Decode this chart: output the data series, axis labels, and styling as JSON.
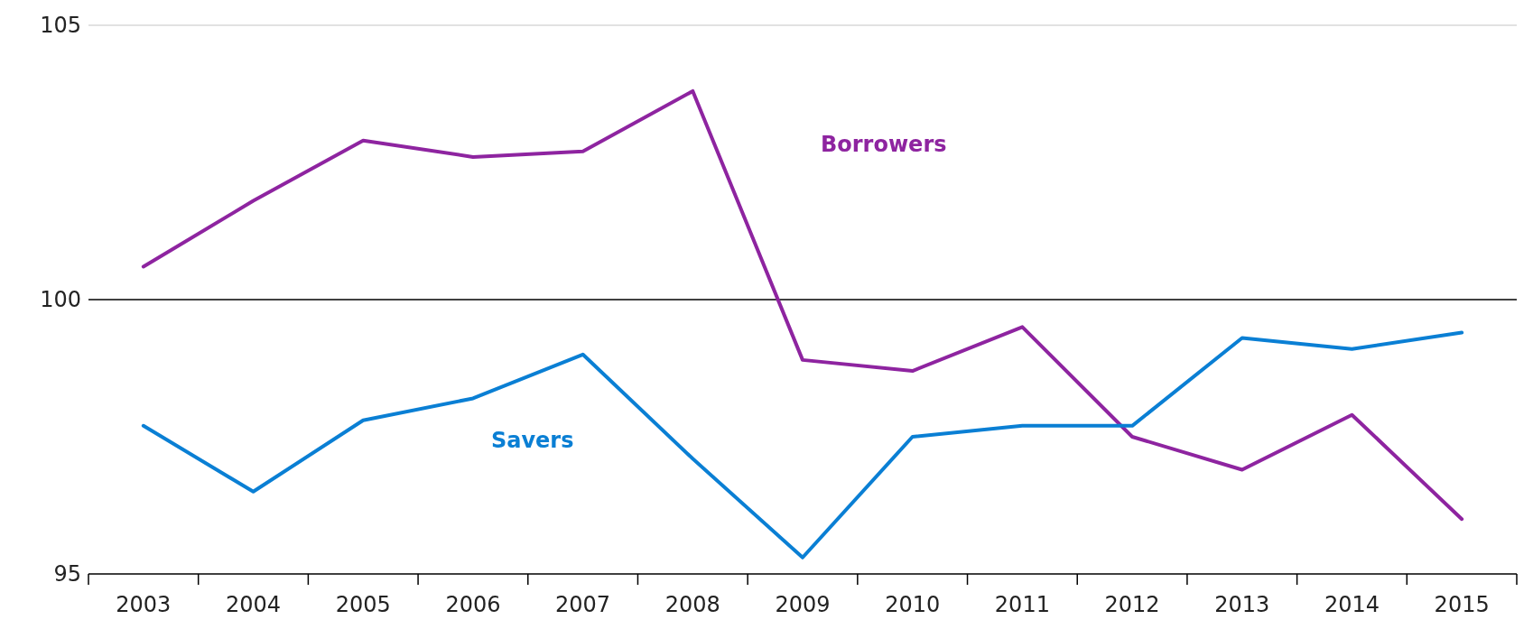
{
  "chart_data": {
    "type": "line",
    "categories": [
      "2003",
      "2004",
      "2005",
      "2006",
      "2007",
      "2008",
      "2009",
      "2010",
      "2011",
      "2012",
      "2013",
      "2014",
      "2015"
    ],
    "series": [
      {
        "name": "Borrowers",
        "color": "#8e24a0",
        "values": [
          100.6,
          101.8,
          102.9,
          102.6,
          102.7,
          103.8,
          98.9,
          98.7,
          99.5,
          97.5,
          96.9,
          97.9,
          96.0
        ]
      },
      {
        "name": "Savers",
        "color": "#0a7fd4",
        "values": [
          97.7,
          96.5,
          97.8,
          98.2,
          99.0,
          97.1,
          95.3,
          97.5,
          97.7,
          97.7,
          99.3,
          99.1,
          99.4
        ]
      }
    ],
    "ylim": [
      95,
      105
    ],
    "yticks": [
      95,
      100,
      105
    ],
    "legend": false,
    "marker": "none",
    "line_style": "solid",
    "ref_lines": [
      {
        "axis": "y",
        "value": 100,
        "color": "#000000"
      },
      {
        "axis": "y",
        "value": 105,
        "color": "#d9d9d9"
      }
    ]
  }
}
